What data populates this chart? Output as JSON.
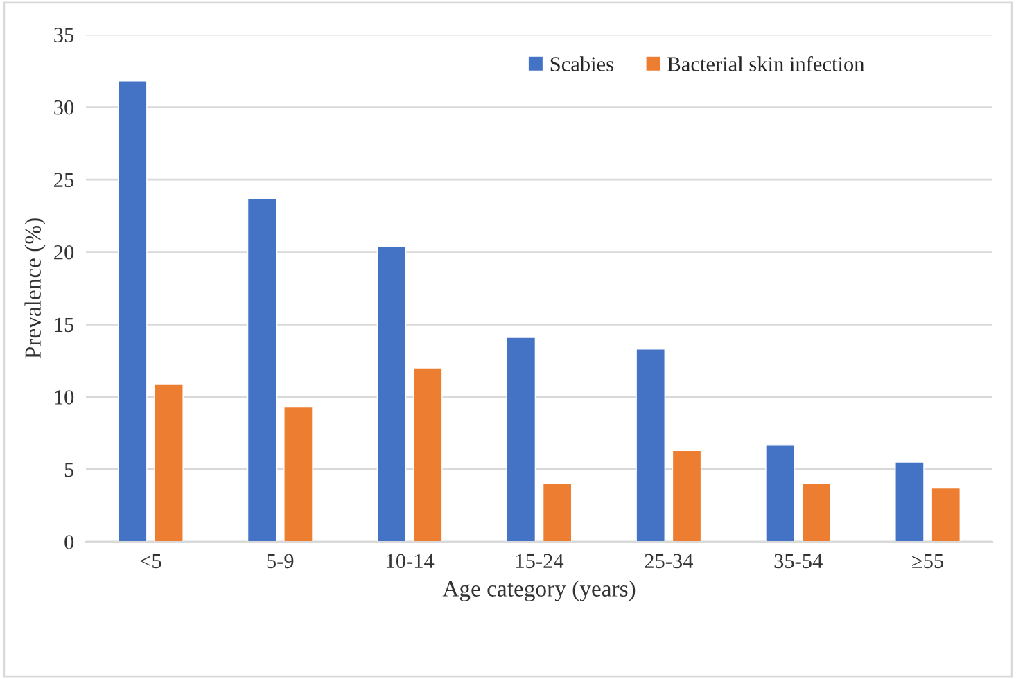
{
  "chart_data": {
    "type": "bar",
    "xlabel": "Age category (years)",
    "ylabel": "Prevalence (%)",
    "categories": [
      "<5",
      "5-9",
      "10-14",
      "15-24",
      "25-34",
      "35-54",
      "≥55"
    ],
    "series": [
      {
        "name": "Scabies",
        "color": "#4472c4",
        "values": [
          31.8,
          23.7,
          20.4,
          14.1,
          13.3,
          6.7,
          5.5
        ]
      },
      {
        "name": "Bacterial skin infection",
        "color": "#ed7d31",
        "values": [
          10.9,
          9.3,
          12.0,
          4.0,
          6.3,
          4.0,
          3.7
        ]
      }
    ],
    "ylim": [
      0,
      35
    ],
    "yticks": [
      0,
      5,
      10,
      15,
      20,
      25,
      30,
      35
    ],
    "grid": "y",
    "legend": "top right"
  }
}
